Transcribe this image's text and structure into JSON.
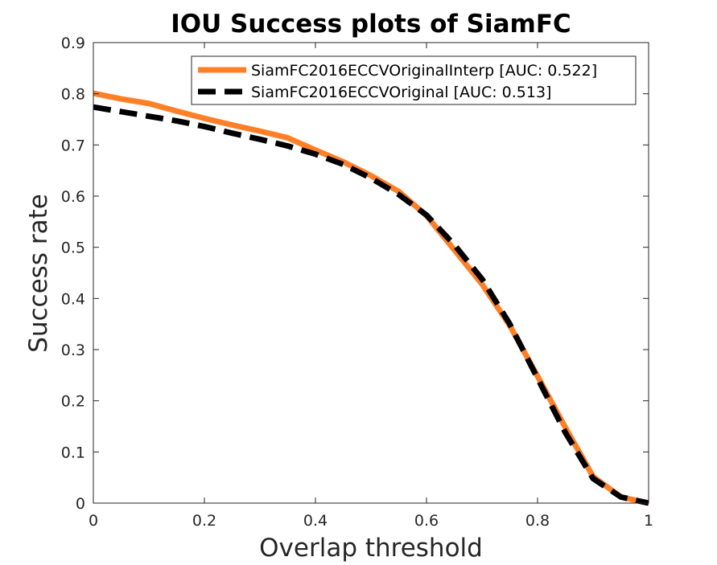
{
  "chart_data": {
    "type": "line",
    "title": "IOU Success plots of SiamFC",
    "xlabel": "Overlap threshold",
    "ylabel": "Success rate",
    "xlim": [
      0,
      1
    ],
    "ylim": [
      0,
      0.9
    ],
    "xticks": [
      0,
      0.2,
      0.4,
      0.6,
      0.8,
      1
    ],
    "xtick_labels": [
      "0",
      "0.2",
      "0.4",
      "0.6",
      "0.8",
      "1"
    ],
    "yticks": [
      0,
      0.1,
      0.2,
      0.3,
      0.4,
      0.5,
      0.6,
      0.7,
      0.8,
      0.9
    ],
    "ytick_labels": [
      "0",
      "0.1",
      "0.2",
      "0.3",
      "0.4",
      "0.5",
      "0.6",
      "0.7",
      "0.8",
      "0.9"
    ],
    "grid": false,
    "legend_position": "top-right",
    "x": [
      0,
      0.05,
      0.1,
      0.15,
      0.2,
      0.25,
      0.3,
      0.35,
      0.4,
      0.45,
      0.5,
      0.55,
      0.6,
      0.65,
      0.7,
      0.75,
      0.8,
      0.85,
      0.9,
      0.95,
      1.0
    ],
    "series": [
      {
        "name": "SiamFC2016ECCVOriginalInterp [AUC: 0.522]",
        "color": "#ff7f27",
        "style": "solid",
        "values": [
          0.801,
          0.79,
          0.781,
          0.766,
          0.752,
          0.739,
          0.727,
          0.714,
          0.69,
          0.667,
          0.64,
          0.609,
          0.562,
          0.495,
          0.428,
          0.347,
          0.248,
          0.148,
          0.052,
          0.012,
          0.0
        ]
      },
      {
        "name": "SiamFC2016ECCVOriginal [AUC: 0.513]",
        "color": "#000000",
        "style": "dashed",
        "values": [
          0.774,
          0.765,
          0.756,
          0.747,
          0.736,
          0.723,
          0.711,
          0.698,
          0.682,
          0.662,
          0.635,
          0.603,
          0.563,
          0.505,
          0.438,
          0.35,
          0.244,
          0.138,
          0.048,
          0.012,
          0.0
        ]
      }
    ]
  }
}
